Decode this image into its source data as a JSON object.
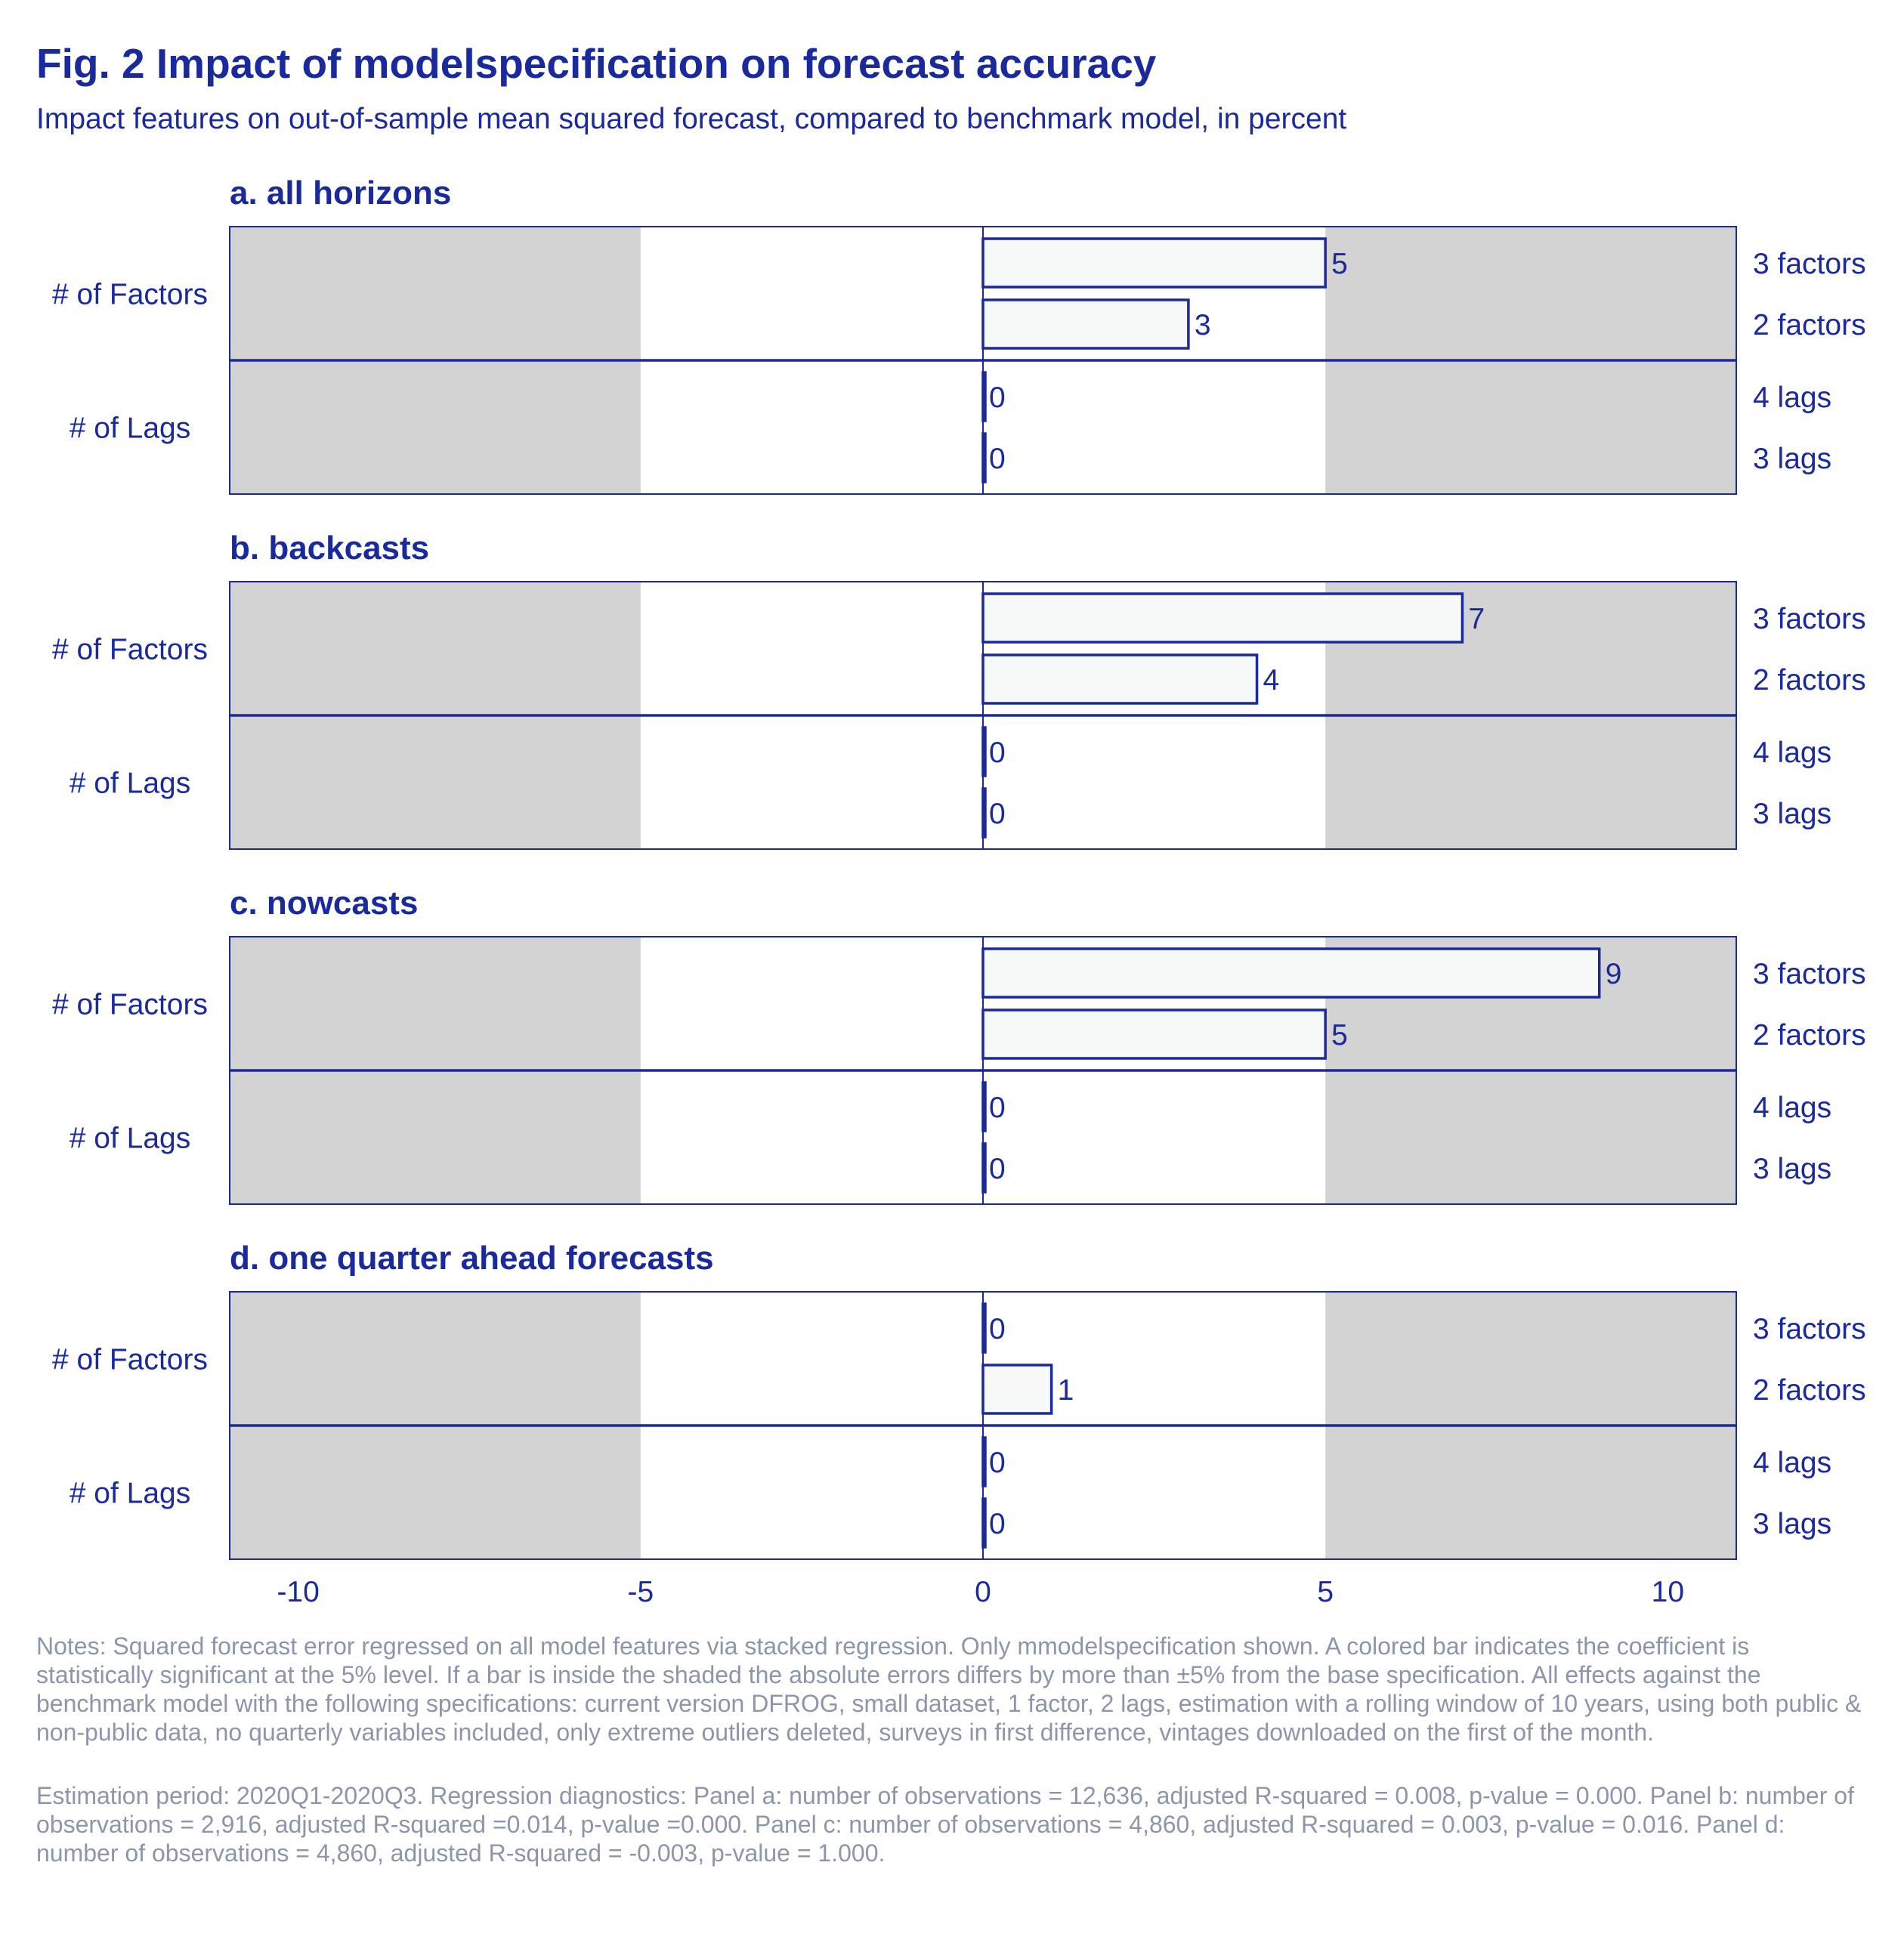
{
  "header": {
    "title": "Fig. 2 Impact of modelspecification on forecast accuracy",
    "subtitle": "Impact features on out-of-sample mean squared forecast, compared to benchmark model, in percent"
  },
  "colors": {
    "accent": "#1a2a9c",
    "shade": "#d3d3d3",
    "bar_fill": "#f7f8f8",
    "notes": "#8c96a8"
  },
  "chart_data": {
    "type": "bar",
    "orientation": "horizontal",
    "xlim": [
      -11,
      11
    ],
    "x_ticks": [
      {
        "value": -10,
        "label": "-10"
      },
      {
        "value": -5,
        "label": "-5"
      },
      {
        "value": 0,
        "label": "0"
      },
      {
        "value": 5,
        "label": "5"
      },
      {
        "value": 10,
        "label": "10"
      }
    ],
    "shaded_ranges": [
      [
        -11,
        -5
      ],
      [
        5,
        11
      ]
    ],
    "groups": [
      {
        "label": "# of Factors",
        "categories": [
          "3 factors",
          "2 factors"
        ]
      },
      {
        "label": "# of Lags",
        "categories": [
          "4 lags",
          "3 lags"
        ]
      }
    ],
    "panels": [
      {
        "title": "a. all horizons",
        "values": [
          {
            "category": "3 factors",
            "value": 5,
            "label": "5"
          },
          {
            "category": "2 factors",
            "value": 3,
            "label": "3"
          },
          {
            "category": "4 lags",
            "value": 0,
            "label": "0"
          },
          {
            "category": "3 lags",
            "value": 0,
            "label": "0"
          }
        ]
      },
      {
        "title": "b. backcasts",
        "values": [
          {
            "category": "3 factors",
            "value": 7,
            "label": "7"
          },
          {
            "category": "2 factors",
            "value": 4,
            "label": "4"
          },
          {
            "category": "4 lags",
            "value": 0,
            "label": "0"
          },
          {
            "category": "3 lags",
            "value": 0,
            "label": "0"
          }
        ]
      },
      {
        "title": "c. nowcasts",
        "values": [
          {
            "category": "3 factors",
            "value": 9,
            "label": "9"
          },
          {
            "category": "2 factors",
            "value": 5,
            "label": "5"
          },
          {
            "category": "4 lags",
            "value": 0,
            "label": "0"
          },
          {
            "category": "3 lags",
            "value": 0,
            "label": "0"
          }
        ]
      },
      {
        "title": "d. one quarter ahead forecasts",
        "values": [
          {
            "category": "3 factors",
            "value": 0,
            "label": "0"
          },
          {
            "category": "2 factors",
            "value": 1,
            "label": "1"
          },
          {
            "category": "4 lags",
            "value": 0,
            "label": "0"
          },
          {
            "category": "3 lags",
            "value": 0,
            "label": "0"
          }
        ]
      }
    ]
  },
  "notes": {
    "paragraph1": "Notes: Squared forecast error regressed on all model features via stacked regression. Only mmodelspecification shown. A colored bar indicates the coefficient is statistically significant at the 5% level. If a bar is inside the shaded the absolute errors differs by more than ±5% from the base specification. All effects against the benchmark model with the following specifications: current version DFROG, small dataset, 1 factor, 2 lags, estimation with a rolling window of 10 years, using both public & non-public data, no quarterly variables included, only extreme outliers deleted, surveys in first difference, vintages downloaded on the first of the month.",
    "paragraph2": "Estimation period: 2020Q1-2020Q3. Regression diagnostics: Panel a: number of observations = 12,636, adjusted R-squared = 0.008, p-value = 0.000. Panel b: number of observations = 2,916, adjusted R-squared =0.014, p-value =0.000. Panel c: number of observations = 4,860, adjusted R-squared = 0.003, p-value = 0.016. Panel d: number of observations = 4,860, adjusted R-squared = -0.003, p-value = 1.000."
  }
}
